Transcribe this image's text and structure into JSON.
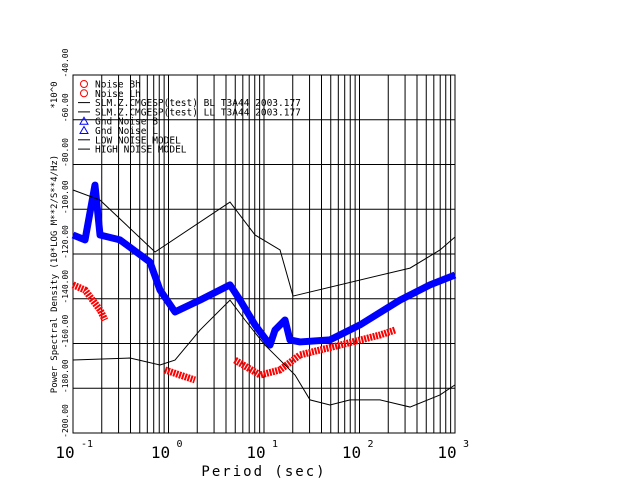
{
  "chart_data": {
    "type": "line",
    "title": "",
    "xlabel": "Period (sec)",
    "ylabel": "Power Spectral Density (10*LOG M**2/S**4/Hz)",
    "y_multiplier": "*10^0",
    "x_scale": "log",
    "xlim_log10": [
      -1,
      3
    ],
    "ylim": [
      -200,
      -40
    ],
    "x_tick_labels": [
      {
        "base": "10",
        "exp": "-1"
      },
      {
        "base": "10",
        "exp": "0"
      },
      {
        "base": "10",
        "exp": "1"
      },
      {
        "base": "10",
        "exp": "2"
      },
      {
        "base": "10",
        "exp": "3"
      }
    ],
    "y_tick_labels": [
      "-200.00",
      "-180.00",
      "-160.00",
      "-140.00",
      "-120.00",
      "-100.00",
      "-80.00",
      "-60.00",
      "-40.00"
    ],
    "grid": true,
    "legend_position": "top-left",
    "legend": [
      {
        "label": "Noise Bh",
        "color": "#ff0000",
        "marker": "circle"
      },
      {
        "label": "Noise Lh",
        "color": "#ff0000",
        "marker": "circle"
      },
      {
        "label": "SLM.Z.CMGESP(test) BL T3A44 2003.177",
        "color": "#000000",
        "marker": "line"
      },
      {
        "label": "SLM.Z.CMGESP(test) LL T3A44 2003.177",
        "color": "#000000",
        "marker": "line"
      },
      {
        "label": "Gnd Noise B",
        "color": "#0000ff",
        "marker": "triangle"
      },
      {
        "label": "Gnd Noise L",
        "color": "#0000ff",
        "marker": "triangle"
      },
      {
        "label": "LOW NOISE MODEL",
        "color": "#000000",
        "marker": "line"
      },
      {
        "label": "HIGH NOISE MODEL",
        "color": "#000000",
        "marker": "line"
      }
    ],
    "series": [
      {
        "name": "Gnd Noise",
        "color": "#0000ff",
        "log10_period": [
          -1,
          -0.874,
          -0.77,
          -0.717,
          -0.508,
          -0.194,
          -0.089,
          0.068,
          0.33,
          0.644,
          0.749,
          0.906,
          1.063,
          1.115,
          1.22,
          1.272,
          1.377,
          1.691,
          2.005,
          2.424,
          2.738,
          3
        ],
        "db": [
          -111.5,
          -113.7,
          -89.2,
          -111.5,
          -113.7,
          -123.6,
          -136.1,
          -145.9,
          -140.6,
          -133.8,
          -140.6,
          -151.7,
          -160.7,
          -154,
          -149.5,
          -158.4,
          -159.3,
          -158.4,
          -151.7,
          -140.6,
          -133.8,
          -129.4
        ]
      },
      {
        "name": "Noise",
        "color": "#ff0000",
        "segments": [
          {
            "log10_period": [
              -1,
              -0.874,
              -0.717,
              -0.665
            ],
            "db": [
              -133.8,
              -136.1,
              -145,
              -149.5
            ]
          },
          {
            "log10_period": [
              -0.037,
              0.12,
              0.277
            ],
            "db": [
              -171.8,
              -174.1,
              -176.3
            ]
          },
          {
            "log10_period": [
              0.696,
              0.958,
              1.168,
              1.377,
              1.796,
              2.215,
              2.372
            ],
            "db": [
              -167.4,
              -174.1,
              -171.8,
              -165.1,
              -160.7,
              -156.2,
              -154
            ]
          }
        ]
      },
      {
        "name": "LOW NOISE MODEL",
        "color": "#000000",
        "log10_period": [
          -1,
          -0.403,
          -0.089,
          0.068,
          0.33,
          0.644,
          0.801,
          1.01,
          1.168,
          1.325,
          1.482,
          1.691,
          1.901,
          2.215,
          2.529,
          2.843,
          3
        ],
        "db": [
          -167.4,
          -166.5,
          -169.6,
          -167.4,
          -154,
          -140.6,
          -149.5,
          -160.7,
          -167.4,
          -174.1,
          -185.2,
          -187.5,
          -185.2,
          -185.2,
          -188.4,
          -183,
          -178.5
        ]
      },
      {
        "name": "HIGH NOISE MODEL",
        "color": "#000000",
        "log10_period": [
          -1,
          -0.717,
          -0.141,
          0.644,
          0.906,
          1.168,
          1.304,
          2.529,
          2.843,
          3
        ],
        "db": [
          -91.4,
          -95.9,
          -119.1,
          -96.8,
          -111.5,
          -118.2,
          -138.8,
          -126.3,
          -118.2,
          -112.4
        ]
      }
    ]
  }
}
